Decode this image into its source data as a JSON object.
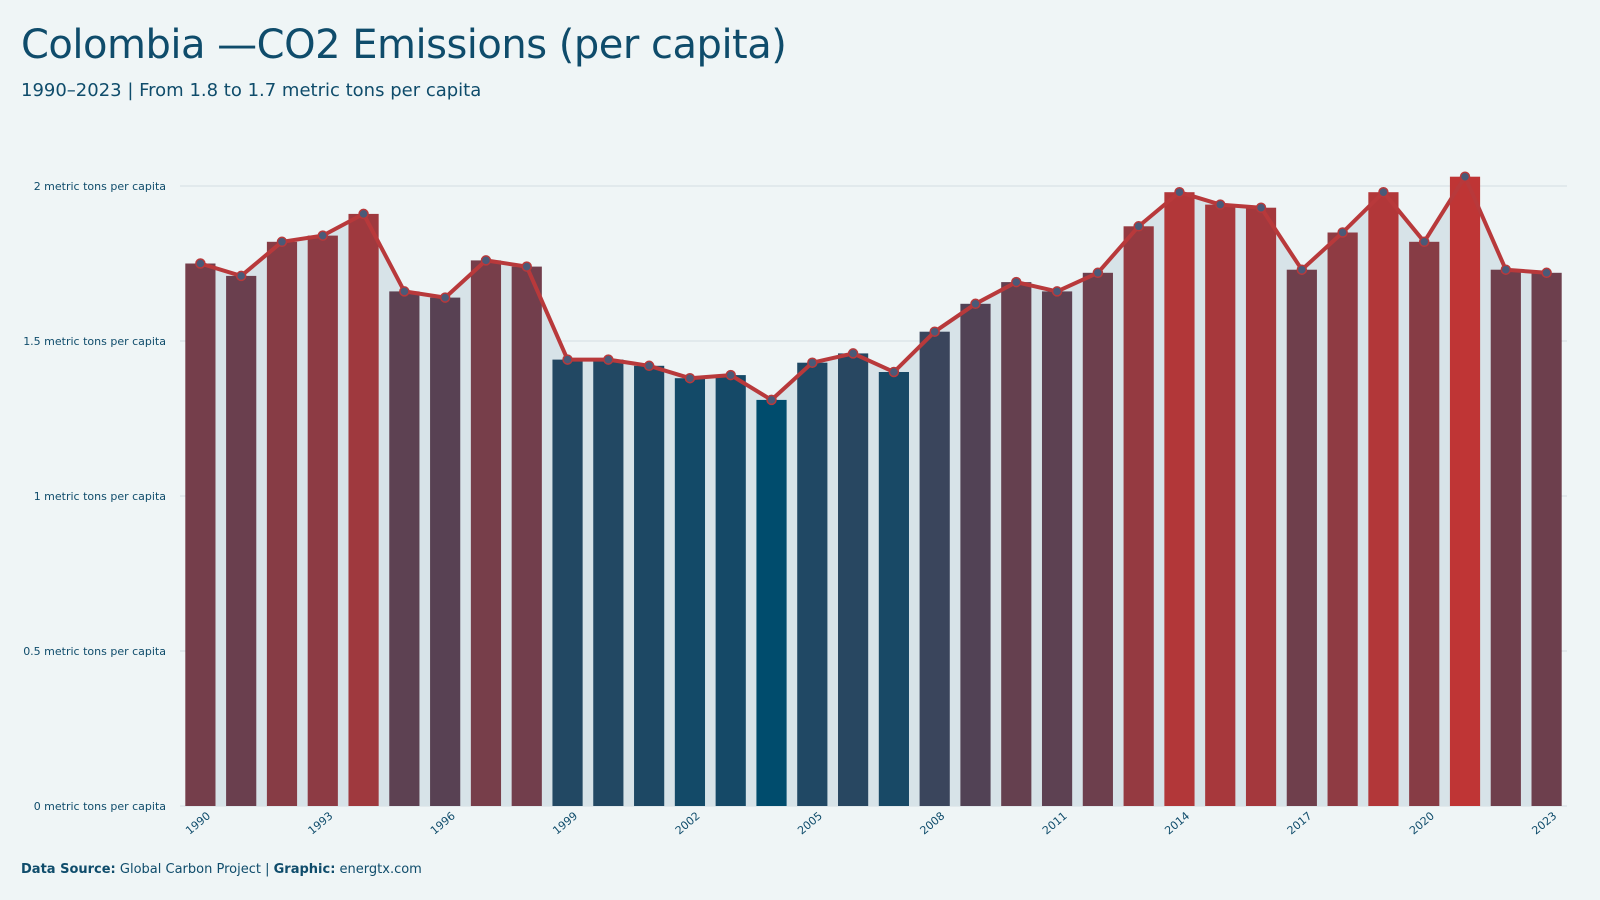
{
  "header": {
    "title": "Colombia —CO2 Emissions (per capita)",
    "subtitle": "1990–2023 | From 1.8 to 1.7 metric tons per capita"
  },
  "footer": {
    "source_label": "Data Source:",
    "source_value": "Global Carbon Project",
    "separator": "|",
    "graphic_label": "Graphic:",
    "graphic_value": "energtx.com"
  },
  "colors": {
    "background": "#eff5f6",
    "title": "#0f4c6b",
    "line": "#b8393b",
    "marker": "#4a5a78",
    "bar_low": "#004c6d",
    "bar_high": "#bf3535",
    "area": "#d7e3e8",
    "grid": "#d3dde1"
  },
  "chart_data": {
    "type": "bar",
    "x": [
      1990,
      1991,
      1992,
      1993,
      1994,
      1995,
      1996,
      1997,
      1998,
      1999,
      2000,
      2001,
      2002,
      2003,
      2004,
      2005,
      2006,
      2007,
      2008,
      2009,
      2010,
      2011,
      2012,
      2013,
      2014,
      2015,
      2016,
      2017,
      2018,
      2019,
      2020,
      2021,
      2022,
      2023
    ],
    "values": [
      1.75,
      1.71,
      1.82,
      1.84,
      1.91,
      1.66,
      1.64,
      1.76,
      1.74,
      1.44,
      1.44,
      1.42,
      1.38,
      1.39,
      1.31,
      1.43,
      1.46,
      1.4,
      1.53,
      1.62,
      1.69,
      1.66,
      1.72,
      1.87,
      1.98,
      1.94,
      1.93,
      1.73,
      1.85,
      1.98,
      1.82,
      2.03,
      1.73,
      1.72
    ],
    "x_tick_labels": [
      "1990",
      "1993",
      "1996",
      "1999",
      "2002",
      "2005",
      "2008",
      "2011",
      "2014",
      "2017",
      "2020",
      "2023"
    ],
    "y_ticks": [
      0,
      0.5,
      1,
      1.5,
      2
    ],
    "y_tick_labels": [
      "0 metric tons per capita",
      "0.5 metric tons per capita",
      "1 metric tons per capita",
      "1.5 metric tons per capita",
      "2 metric tons per capita"
    ],
    "ylim": [
      0,
      2.05
    ],
    "grid": true,
    "overlay": "line with markers",
    "legend": "none"
  }
}
